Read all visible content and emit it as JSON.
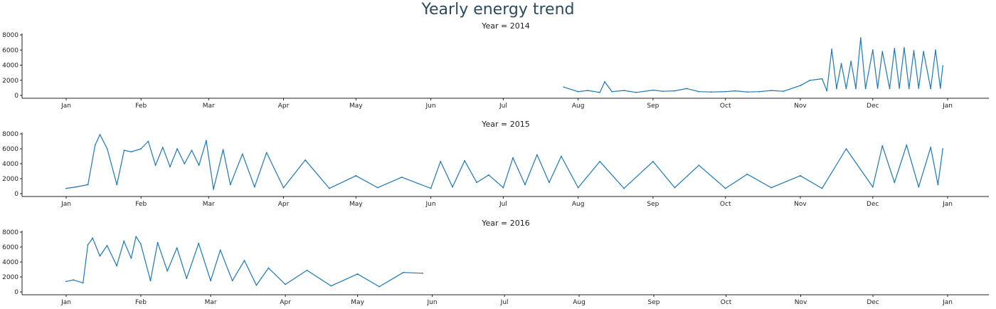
{
  "title": "Yearly energy trend",
  "colors": {
    "line": "#1f77b4",
    "axis": "#222222",
    "title": "#2d4a5e"
  },
  "chart_data": {
    "type": "line",
    "title": "Yearly energy trend",
    "xlabel": "",
    "ylabel": "",
    "x_axis": {
      "type": "date-month",
      "ticks": [
        "Jan",
        "Feb",
        "Mar",
        "Apr",
        "May",
        "Jun",
        "Jul",
        "Aug",
        "Sep",
        "Oct",
        "Nov",
        "Dec",
        "Jan"
      ]
    },
    "ylim": [
      0,
      8000
    ],
    "yticks": [
      0,
      2000,
      4000,
      6000,
      8000
    ],
    "grid": false,
    "legend": "none",
    "panels": [
      {
        "title": "Year = 2014",
        "x": [
          "2014-07-26",
          "2014-08-01",
          "2014-08-05",
          "2014-08-10",
          "2014-08-12",
          "2014-08-15",
          "2014-08-20",
          "2014-08-25",
          "2014-09-01",
          "2014-09-05",
          "2014-09-10",
          "2014-09-15",
          "2014-09-20",
          "2014-09-25",
          "2014-10-01",
          "2014-10-05",
          "2014-10-10",
          "2014-10-15",
          "2014-10-20",
          "2014-10-25",
          "2014-11-01",
          "2014-11-05",
          "2014-11-10",
          "2014-11-12",
          "2014-11-14",
          "2014-11-16",
          "2014-11-18",
          "2014-11-20",
          "2014-11-22",
          "2014-11-24",
          "2014-11-26",
          "2014-11-28",
          "2014-12-01",
          "2014-12-03",
          "2014-12-05",
          "2014-12-08",
          "2014-12-10",
          "2014-12-12",
          "2014-12-14",
          "2014-12-16",
          "2014-12-18",
          "2014-12-20",
          "2014-12-22",
          "2014-12-25",
          "2014-12-27",
          "2014-12-29",
          "2014-12-30"
        ],
        "y": [
          1100,
          500,
          650,
          400,
          1800,
          500,
          650,
          400,
          700,
          550,
          600,
          900,
          500,
          450,
          500,
          600,
          450,
          500,
          650,
          550,
          1300,
          2000,
          2200,
          600,
          6100,
          900,
          4200,
          900,
          4500,
          900,
          7600,
          900,
          6000,
          950,
          5800,
          900,
          6200,
          950,
          6300,
          900,
          5900,
          950,
          5800,
          900,
          6000,
          950,
          3900
        ]
      },
      {
        "title": "Year = 2015",
        "x": [
          "2015-01-01",
          "2015-01-05",
          "2015-01-10",
          "2015-01-13",
          "2015-01-15",
          "2015-01-18",
          "2015-01-22",
          "2015-01-25",
          "2015-01-28",
          "2015-02-01",
          "2015-02-04",
          "2015-02-07",
          "2015-02-10",
          "2015-02-13",
          "2015-02-16",
          "2015-02-19",
          "2015-02-22",
          "2015-02-25",
          "2015-02-28",
          "2015-03-03",
          "2015-03-07",
          "2015-03-10",
          "2015-03-15",
          "2015-03-20",
          "2015-03-25",
          "2015-04-01",
          "2015-04-10",
          "2015-04-20",
          "2015-05-01",
          "2015-05-10",
          "2015-05-20",
          "2015-06-01",
          "2015-06-05",
          "2015-06-10",
          "2015-06-15",
          "2015-06-20",
          "2015-06-25",
          "2015-07-01",
          "2015-07-05",
          "2015-07-10",
          "2015-07-15",
          "2015-07-20",
          "2015-07-25",
          "2015-08-01",
          "2015-08-10",
          "2015-08-20",
          "2015-09-01",
          "2015-09-10",
          "2015-09-20",
          "2015-10-01",
          "2015-10-10",
          "2015-10-20",
          "2015-11-01",
          "2015-11-10",
          "2015-11-20",
          "2015-12-01",
          "2015-12-05",
          "2015-12-10",
          "2015-12-15",
          "2015-12-20",
          "2015-12-25",
          "2015-12-28",
          "2015-12-30"
        ],
        "y": [
          700,
          900,
          1200,
          6500,
          7900,
          6000,
          1200,
          5800,
          5600,
          6000,
          7000,
          3800,
          6200,
          3600,
          6000,
          4000,
          5800,
          3800,
          7100,
          600,
          5900,
          1200,
          5300,
          900,
          5500,
          800,
          4500,
          700,
          2400,
          800,
          2200,
          700,
          4300,
          900,
          4400,
          1500,
          2500,
          800,
          4800,
          1200,
          5200,
          1500,
          5000,
          800,
          4300,
          700,
          4300,
          800,
          3800,
          700,
          2600,
          800,
          2400,
          700,
          6000,
          900,
          6400,
          1500,
          6500,
          900,
          6200,
          1200,
          6000
        ]
      },
      {
        "title": "Year = 2016",
        "x": [
          "2016-01-01",
          "2016-01-04",
          "2016-01-08",
          "2016-01-10",
          "2016-01-12",
          "2016-01-15",
          "2016-01-18",
          "2016-01-22",
          "2016-01-25",
          "2016-01-28",
          "2016-01-30",
          "2016-02-01",
          "2016-02-05",
          "2016-02-08",
          "2016-02-12",
          "2016-02-16",
          "2016-02-20",
          "2016-02-25",
          "2016-03-01",
          "2016-03-05",
          "2016-03-10",
          "2016-03-15",
          "2016-03-20",
          "2016-03-25",
          "2016-04-01",
          "2016-04-10",
          "2016-04-20",
          "2016-05-01",
          "2016-05-10",
          "2016-05-20",
          "2016-05-28"
        ],
        "y": [
          1400,
          1600,
          1200,
          6300,
          7200,
          4800,
          6200,
          3500,
          6800,
          4500,
          7400,
          6400,
          1500,
          6600,
          2800,
          5900,
          1800,
          6500,
          1500,
          5600,
          1500,
          4200,
          900,
          3200,
          1000,
          2900,
          800,
          2400,
          700,
          2600,
          2500
        ]
      }
    ]
  }
}
